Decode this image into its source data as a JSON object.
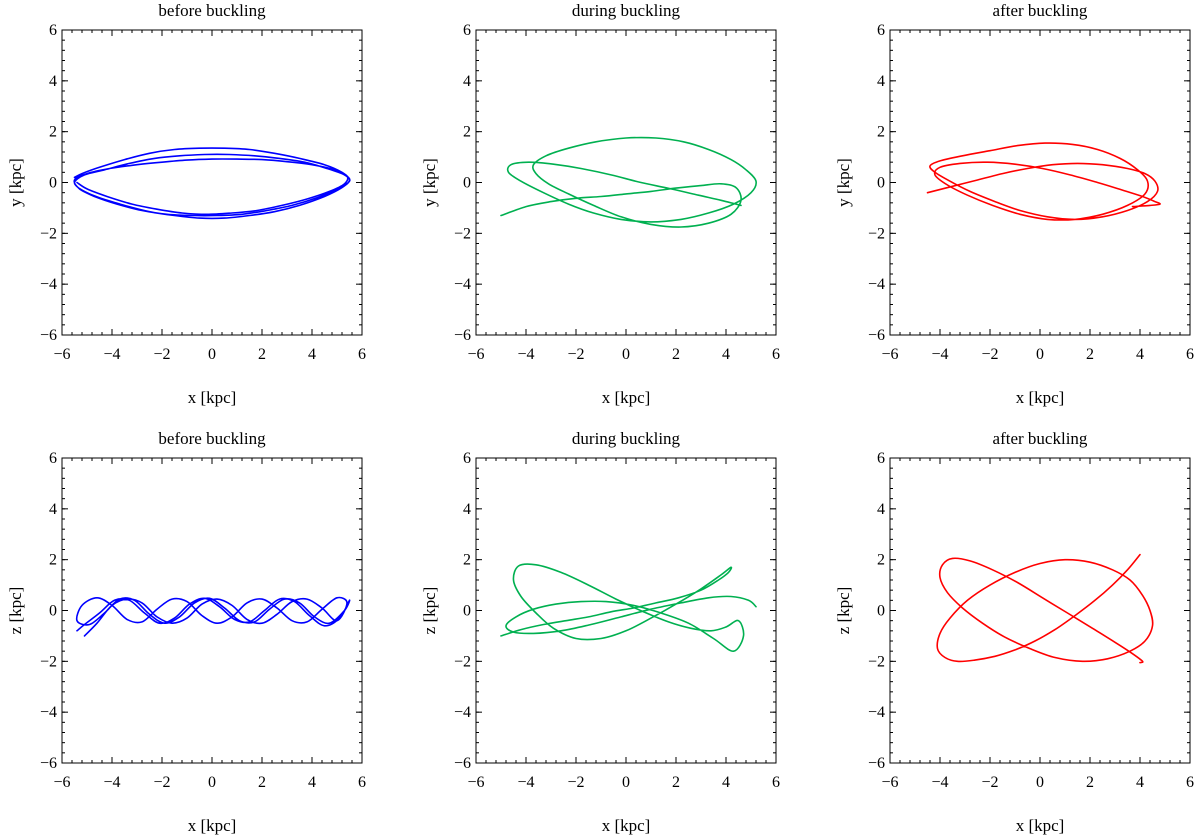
{
  "chart_data": [
    {
      "type": "line",
      "title": "before buckling",
      "xlabel": "x [kpc]",
      "ylabel": "y [kpc]",
      "xlim": [
        -6,
        6
      ],
      "ylim": [
        -6,
        6
      ],
      "xticks": [
        "−6",
        "−4",
        "−2",
        "0",
        "2",
        "4",
        "6"
      ],
      "yticks": [
        "−6",
        "−4",
        "−2",
        "0",
        "2",
        "4",
        "6"
      ],
      "grid": false,
      "series": [
        {
          "color": "#0000ff",
          "x": [
            -5.5,
            -5.2,
            -4.5,
            -3.5,
            -2.5,
            -1.5,
            -0.5,
            0.5,
            1.5,
            2.5,
            3.5,
            4.5,
            5.2,
            5.5,
            5.2,
            4.5,
            3.5,
            2.5,
            1.5,
            0.5,
            -0.5,
            -1.5,
            -2.5,
            -3.5,
            -4.5,
            -5.2,
            -5.5,
            -5.1,
            -4.3,
            -3.3,
            -2.3,
            -1.3,
            -0.3,
            0.7,
            1.7,
            2.7,
            3.7,
            4.6,
            5.3,
            5.5,
            5.0,
            4.2,
            3.2,
            2.2,
            1.2,
            0.2,
            -0.8,
            -1.8,
            -2.8,
            -3.8,
            -4.7,
            -5.3,
            -5.5,
            -5.0,
            -4.1,
            -3.0,
            -2.0,
            -1.0,
            0.0,
            1.0,
            2.0,
            3.0,
            4.0,
            4.9,
            5.4,
            5.3,
            4.7,
            3.8,
            2.8,
            1.8,
            0.8,
            -0.2,
            -1.2,
            -2.2,
            -3.2,
            -4.2,
            -5.0,
            -5.4
          ],
          "y": [
            0.2,
            0.35,
            0.6,
            0.9,
            1.15,
            1.3,
            1.35,
            1.35,
            1.3,
            1.15,
            0.95,
            0.7,
            0.4,
            0.1,
            -0.2,
            -0.55,
            -0.9,
            -1.15,
            -1.3,
            -1.4,
            -1.4,
            -1.3,
            -1.15,
            -0.9,
            -0.6,
            -0.3,
            0.0,
            0.3,
            0.5,
            0.75,
            0.95,
            1.05,
            1.1,
            1.1,
            1.05,
            0.95,
            0.8,
            0.55,
            0.3,
            0.05,
            -0.25,
            -0.6,
            -0.9,
            -1.1,
            -1.25,
            -1.3,
            -1.3,
            -1.25,
            -1.1,
            -0.85,
            -0.55,
            -0.25,
            0.1,
            0.35,
            0.55,
            0.7,
            0.8,
            0.88,
            0.92,
            0.92,
            0.9,
            0.82,
            0.7,
            0.5,
            0.25,
            -0.05,
            -0.35,
            -0.65,
            -0.9,
            -1.1,
            -1.2,
            -1.25,
            -1.2,
            -1.05,
            -0.85,
            -0.55,
            -0.25,
            0.0
          ]
        }
      ]
    },
    {
      "type": "line",
      "title": "during buckling",
      "xlabel": "x [kpc]",
      "ylabel": "y [kpc]",
      "xlim": [
        -6,
        6
      ],
      "ylim": [
        -6,
        6
      ],
      "xticks": [
        "−6",
        "−4",
        "−2",
        "0",
        "2",
        "4",
        "6"
      ],
      "yticks": [
        "−6",
        "−4",
        "−2",
        "0",
        "2",
        "4",
        "6"
      ],
      "grid": false,
      "series": [
        {
          "color": "#00b050",
          "x": [
            -5.0,
            -4.0,
            -3.0,
            -2.0,
            -1.0,
            0.0,
            1.0,
            2.0,
            3.0,
            3.8,
            4.4,
            4.6,
            4.2,
            3.3,
            2.2,
            1.0,
            -0.2,
            -1.3,
            -2.3,
            -3.1,
            -3.6,
            -3.7,
            -3.2,
            -2.3,
            -1.2,
            0.0,
            1.2,
            2.3,
            3.3,
            4.2,
            4.8,
            5.2,
            5.0,
            4.3,
            3.3,
            2.2,
            1.0,
            -0.2,
            -1.3,
            -2.3,
            -3.3,
            -4.2,
            -4.7,
            -4.6,
            -3.9,
            -2.9,
            -1.8,
            -0.6,
            0.6,
            1.8,
            2.9,
            3.8,
            4.4,
            4.6
          ],
          "y": [
            -1.3,
            -0.95,
            -0.75,
            -0.62,
            -0.55,
            -0.45,
            -0.35,
            -0.22,
            -0.12,
            -0.05,
            -0.2,
            -0.7,
            -1.25,
            -1.6,
            -1.75,
            -1.65,
            -1.35,
            -0.9,
            -0.45,
            -0.05,
            0.35,
            0.7,
            1.05,
            1.35,
            1.6,
            1.75,
            1.75,
            1.6,
            1.3,
            0.9,
            0.5,
            0.05,
            -0.4,
            -0.85,
            -1.2,
            -1.45,
            -1.55,
            -1.45,
            -1.2,
            -0.85,
            -0.4,
            0.05,
            0.4,
            0.7,
            0.8,
            0.72,
            0.55,
            0.3,
            0.0,
            -0.25,
            -0.5,
            -0.7,
            -0.85,
            -0.9
          ]
        }
      ]
    },
    {
      "type": "line",
      "title": "after buckling",
      "xlabel": "x [kpc]",
      "ylabel": "y [kpc]",
      "xlim": [
        -6,
        6
      ],
      "ylim": [
        -6,
        6
      ],
      "xticks": [
        "−6",
        "−4",
        "−2",
        "0",
        "2",
        "4",
        "6"
      ],
      "yticks": [
        "−6",
        "−4",
        "−2",
        "0",
        "2",
        "4",
        "6"
      ],
      "grid": false,
      "series": [
        {
          "color": "#ff0000",
          "x": [
            -4.5,
            -3.5,
            -2.5,
            -1.5,
            -0.5,
            0.5,
            1.5,
            2.5,
            3.5,
            4.2,
            4.6,
            4.7,
            4.3,
            3.5,
            2.5,
            1.4,
            0.3,
            -0.8,
            -1.8,
            -2.8,
            -3.6,
            -4.2,
            -4.4,
            -4.0,
            -3.1,
            -2.0,
            -0.9,
            0.2,
            1.3,
            2.3,
            3.2,
            3.9,
            4.3,
            4.2,
            3.5,
            2.5,
            1.4,
            0.3,
            -0.8,
            -1.9,
            -2.9,
            -3.7,
            -4.2,
            -4.0,
            -3.2,
            -2.1,
            -1.0,
            0.1,
            1.2,
            2.3,
            3.3,
            4.1,
            4.6,
            4.8,
            4.4,
            3.7
          ],
          "y": [
            -0.4,
            -0.15,
            0.1,
            0.35,
            0.55,
            0.7,
            0.75,
            0.7,
            0.55,
            0.35,
            0.05,
            -0.35,
            -0.75,
            -1.1,
            -1.35,
            -1.45,
            -1.35,
            -1.1,
            -0.75,
            -0.35,
            0.05,
            0.4,
            0.65,
            0.85,
            1.05,
            1.25,
            1.45,
            1.55,
            1.5,
            1.3,
            0.95,
            0.5,
            0.05,
            -0.45,
            -0.9,
            -1.25,
            -1.45,
            -1.45,
            -1.25,
            -0.9,
            -0.5,
            -0.1,
            0.3,
            0.6,
            0.75,
            0.8,
            0.72,
            0.55,
            0.3,
            0.0,
            -0.3,
            -0.55,
            -0.75,
            -0.85,
            -0.9,
            -0.95
          ]
        }
      ]
    },
    {
      "type": "line",
      "title": "before buckling",
      "xlabel": "x [kpc]",
      "ylabel": "z [kpc]",
      "xlim": [
        -6,
        6
      ],
      "ylim": [
        -6,
        6
      ],
      "xticks": [
        "−6",
        "−4",
        "−2",
        "0",
        "2",
        "4",
        "6"
      ],
      "yticks": [
        "−6",
        "−4",
        "−2",
        "0",
        "2",
        "4",
        "6"
      ],
      "grid": false,
      "series": [
        {
          "color": "#0000ff",
          "x": [
            -5.1,
            -4.6,
            -4.0,
            -3.4,
            -2.8,
            -2.2,
            -1.6,
            -1.0,
            -0.4,
            0.2,
            0.8,
            1.4,
            2.0,
            2.6,
            3.2,
            3.8,
            4.4,
            5.0,
            5.4,
            5.0,
            4.4,
            3.8,
            3.2,
            2.6,
            2.0,
            1.4,
            0.8,
            0.2,
            -0.4,
            -1.0,
            -1.6,
            -2.2,
            -2.8,
            -3.4,
            -4.0,
            -4.6,
            -5.2,
            -5.4,
            -4.9,
            -4.3,
            -3.7,
            -3.1,
            -2.5,
            -1.9,
            -1.3,
            -0.7,
            -0.1,
            0.5,
            1.1,
            1.7,
            2.3,
            2.9,
            3.5,
            4.1,
            4.7,
            5.3,
            5.5,
            5.1,
            4.5,
            3.9,
            3.3,
            2.7,
            2.1,
            1.5,
            0.9,
            0.3,
            -0.3,
            -0.9,
            -1.5,
            -2.1,
            -2.7,
            -3.3,
            -3.9,
            -4.5,
            -5.1,
            -5.4
          ],
          "y": [
            -1.0,
            -0.5,
            0.2,
            0.45,
            0.3,
            -0.25,
            -0.5,
            -0.3,
            0.25,
            0.45,
            0.2,
            -0.35,
            -0.5,
            -0.15,
            0.35,
            0.45,
            0.1,
            -0.4,
            0.3,
            0.5,
            0.05,
            -0.45,
            -0.4,
            0.1,
            0.45,
            0.3,
            -0.25,
            -0.5,
            -0.2,
            0.35,
            0.45,
            0.05,
            -0.45,
            -0.35,
            0.2,
            0.5,
            0.2,
            -0.4,
            -0.55,
            -0.1,
            0.45,
            0.4,
            -0.15,
            -0.5,
            -0.25,
            0.3,
            0.48,
            0.1,
            -0.4,
            -0.45,
            0.05,
            0.45,
            0.3,
            -0.25,
            -0.5,
            0.0,
            0.4,
            -0.3,
            -0.6,
            -0.2,
            0.35,
            0.45,
            0.0,
            -0.45,
            -0.35,
            0.15,
            0.48,
            0.25,
            -0.3,
            -0.5,
            -0.1,
            0.4,
            0.4,
            -0.1,
            -0.55,
            -0.8
          ]
        }
      ]
    },
    {
      "type": "line",
      "title": "during buckling",
      "xlabel": "x [kpc]",
      "ylabel": "z [kpc]",
      "xlim": [
        -6,
        6
      ],
      "ylim": [
        -6,
        6
      ],
      "xticks": [
        "−6",
        "−4",
        "−2",
        "0",
        "2",
        "4",
        "6"
      ],
      "yticks": [
        "−6",
        "−4",
        "−2",
        "0",
        "2",
        "4",
        "6"
      ],
      "grid": false,
      "series": [
        {
          "color": "#00b050",
          "x": [
            -5.0,
            -4.2,
            -3.3,
            -2.4,
            -1.5,
            -0.6,
            0.3,
            1.2,
            2.1,
            3.0,
            3.7,
            4.1,
            4.2,
            3.8,
            3.0,
            2.0,
            1.0,
            0.0,
            -1.0,
            -2.0,
            -2.9,
            -3.6,
            -4.2,
            -4.5,
            -4.3,
            -3.6,
            -2.6,
            -1.5,
            -0.4,
            0.7,
            1.7,
            2.6,
            3.4,
            4.0,
            4.5,
            4.7,
            4.3,
            3.5,
            2.5,
            1.4,
            0.3,
            -0.8,
            -1.8,
            -2.8,
            -3.7,
            -4.4,
            -4.8,
            -4.5,
            -3.7,
            -2.6,
            -1.4,
            -0.2,
            1.0,
            2.2,
            3.3,
            4.2,
            4.9,
            5.2
          ],
          "y": [
            -1.0,
            -0.75,
            -0.55,
            -0.4,
            -0.25,
            -0.05,
            0.1,
            0.3,
            0.5,
            0.8,
            1.2,
            1.5,
            1.7,
            1.4,
            0.85,
            0.25,
            -0.3,
            -0.8,
            -1.1,
            -1.1,
            -0.7,
            -0.1,
            0.55,
            1.2,
            1.75,
            1.8,
            1.5,
            1.0,
            0.45,
            -0.05,
            -0.45,
            -0.7,
            -0.8,
            -0.65,
            -0.4,
            -1.0,
            -1.6,
            -1.1,
            -0.5,
            -0.1,
            0.2,
            0.35,
            0.35,
            0.25,
            0.05,
            -0.25,
            -0.6,
            -0.85,
            -0.9,
            -0.8,
            -0.55,
            -0.25,
            0.05,
            0.3,
            0.5,
            0.55,
            0.4,
            0.15
          ]
        }
      ]
    },
    {
      "type": "line",
      "title": "after buckling",
      "xlabel": "x [kpc]",
      "ylabel": "z [kpc]",
      "xlim": [
        -6,
        6
      ],
      "ylim": [
        -6,
        6
      ],
      "xticks": [
        "−6",
        "−4",
        "−2",
        "0",
        "2",
        "4",
        "6"
      ],
      "yticks": [
        "−6",
        "−4",
        "−2",
        "0",
        "2",
        "4",
        "6"
      ],
      "grid": false,
      "series": [
        {
          "color": "#ff0000",
          "x": [
            4.0,
            3.5,
            2.9,
            2.2,
            1.4,
            0.6,
            -0.2,
            -1.0,
            -1.8,
            -2.6,
            -3.3,
            -3.8,
            -4.1,
            -4.0,
            -3.6,
            -2.9,
            -2.0,
            -1.0,
            0.0,
            1.0,
            2.0,
            2.9,
            3.6,
            4.1,
            4.4,
            4.5,
            4.2,
            3.6,
            2.7,
            1.7,
            0.6,
            -0.4,
            -1.4,
            -2.3,
            -3.1,
            -3.7,
            -4.0,
            -3.9,
            -3.5,
            -2.8,
            -1.9,
            -0.9,
            0.1,
            1.1,
            2.1,
            3.0,
            3.7,
            4.1,
            4.0
          ],
          "y": [
            2.2,
            1.6,
            1.0,
            0.4,
            -0.2,
            -0.75,
            -1.2,
            -1.55,
            -1.8,
            -1.95,
            -2.0,
            -1.85,
            -1.5,
            -0.9,
            -0.3,
            0.4,
            1.0,
            1.5,
            1.85,
            2.0,
            1.9,
            1.6,
            1.2,
            0.6,
            0.0,
            -0.6,
            -1.2,
            -1.6,
            -1.9,
            -2.0,
            -1.85,
            -1.5,
            -1.05,
            -0.5,
            0.1,
            0.7,
            1.3,
            1.8,
            2.05,
            1.95,
            1.6,
            1.1,
            0.5,
            -0.1,
            -0.7,
            -1.25,
            -1.7,
            -2.0,
            -2.05
          ]
        }
      ]
    }
  ]
}
